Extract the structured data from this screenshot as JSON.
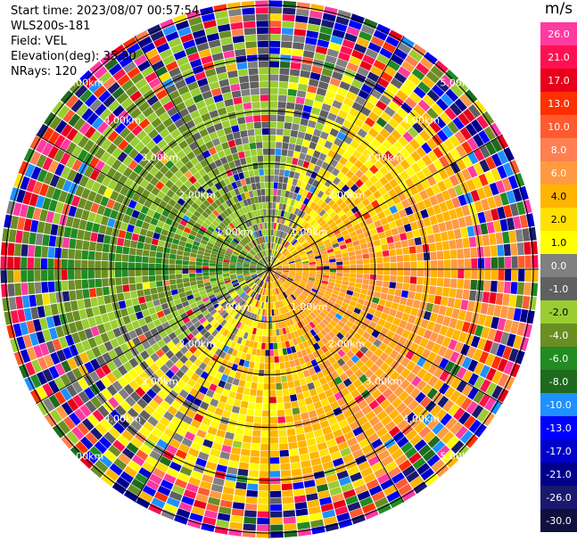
{
  "header": {
    "start_time": "Start time: 2023/08/07 00:57:54",
    "instrument": "WLS200s-181",
    "field": "Field: VEL",
    "elevation": "Elevation(deg): 35.30",
    "nrays": "NRays: 120"
  },
  "colorbar": {
    "unit": "m/s",
    "labels": [
      "26.0",
      "21.0",
      "17.0",
      "13.0",
      "10.0",
      "8.0",
      "6.0",
      "4.0",
      "2.0",
      "1.0",
      "0.0",
      "-1.0",
      "-2.0",
      "-4.0",
      "-6.0",
      "-8.0",
      "-10.0",
      "-13.0",
      "-17.0",
      "-21.0",
      "-26.0",
      "-30.0"
    ],
    "colors": [
      "#ff3aa0",
      "#ff1050",
      "#e8001a",
      "#ff3000",
      "#ff5a30",
      "#ff7f50",
      "#ff9a40",
      "#ffb400",
      "#ffe000",
      "#ffff00",
      "#808080",
      "#606060",
      "#9acd32",
      "#6b8e23",
      "#228b22",
      "#1e6b1e",
      "#1e90ff",
      "#0000ff",
      "#0000cd",
      "#00008b",
      "#191970",
      "#101040"
    ]
  },
  "chart_data": {
    "type": "ppi",
    "field": "VEL",
    "unit": "m/s",
    "nrays": 120,
    "elevation_deg": 35.3,
    "ring_labels": [
      "1.00km",
      "2.00km",
      "3.00km",
      "4.00km",
      "5.00km"
    ],
    "ring_ranges_km": [
      1,
      2,
      3,
      4,
      5
    ],
    "max_range_km": 5.1,
    "color_scale_range": [
      -30.0,
      26.0
    ],
    "dominant_velocity_by_sector": [
      {
        "sector": "north-west",
        "velocity_ms": -4.0
      },
      {
        "sector": "north",
        "velocity_ms": -2.0
      },
      {
        "sector": "north-east",
        "velocity_ms": 2.0
      },
      {
        "sector": "east",
        "velocity_ms": 4.0
      },
      {
        "sector": "south-east",
        "velocity_ms": 4.0
      },
      {
        "sector": "south",
        "velocity_ms": 2.0
      },
      {
        "sector": "south-west",
        "velocity_ms": 0.0
      },
      {
        "sector": "west",
        "velocity_ms": -6.0
      }
    ]
  }
}
